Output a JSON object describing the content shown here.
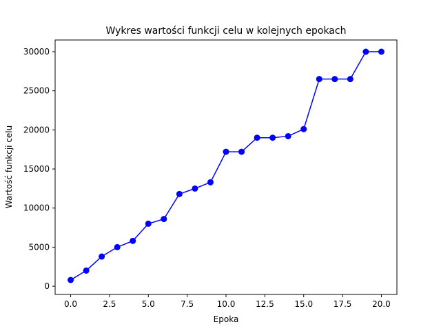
{
  "chart_data": {
    "type": "line",
    "title": "Wykres wartości funkcji celu w kolejnych epokach",
    "xlabel": "Epoka",
    "ylabel": "Wartość funkcji celu",
    "xlim": [
      -1,
      21
    ],
    "ylim": [
      -1050,
      31500
    ],
    "x_ticks": [
      0.0,
      2.5,
      5.0,
      7.5,
      10.0,
      12.5,
      15.0,
      17.5,
      20.0
    ],
    "x_tick_labels": [
      "0.0",
      "2.5",
      "5.0",
      "7.5",
      "10.0",
      "12.5",
      "15.0",
      "17.5",
      "20.0"
    ],
    "y_ticks": [
      0,
      5000,
      10000,
      15000,
      20000,
      25000,
      30000
    ],
    "y_tick_labels": [
      "0",
      "5000",
      "10000",
      "15000",
      "20000",
      "25000",
      "30000"
    ],
    "grid": false,
    "legend": "none",
    "series": [
      {
        "color": "#0000ff",
        "marker": "circle",
        "x": [
          0,
          1,
          2,
          3,
          4,
          5,
          6,
          7,
          8,
          9,
          10,
          11,
          12,
          13,
          14,
          15,
          16,
          17,
          18,
          19,
          20
        ],
        "y": [
          800,
          2000,
          3800,
          5000,
          5800,
          8000,
          8600,
          11800,
          12500,
          13300,
          17200,
          17200,
          19000,
          19000,
          19200,
          20100,
          26500,
          26500,
          26500,
          30000,
          30000
        ]
      }
    ]
  }
}
